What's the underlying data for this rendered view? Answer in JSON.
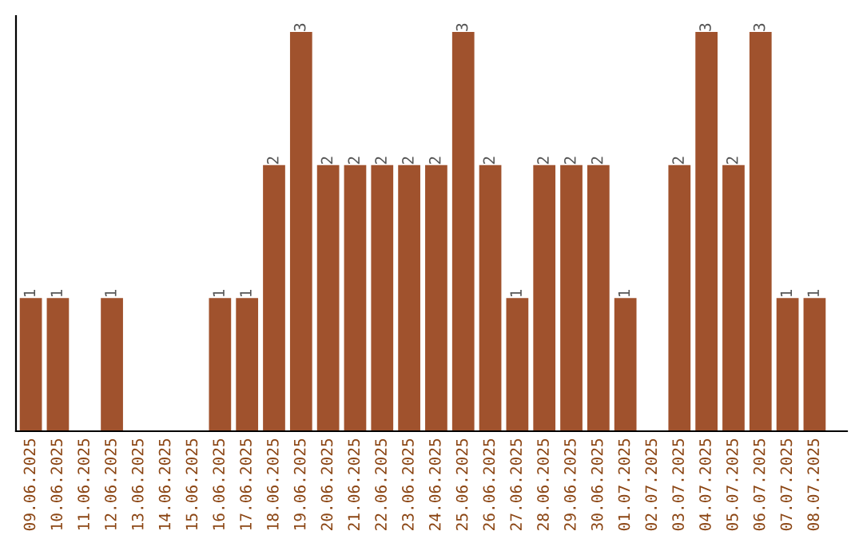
{
  "chart_data": {
    "type": "bar",
    "categories": [
      "09.06.2025",
      "10.06.2025",
      "11.06.2025",
      "12.06.2025",
      "13.06.2025",
      "14.06.2025",
      "15.06.2025",
      "16.06.2025",
      "17.06.2025",
      "18.06.2025",
      "19.06.2025",
      "20.06.2025",
      "21.06.2025",
      "22.06.2025",
      "23.06.2025",
      "24.06.2025",
      "25.06.2025",
      "26.06.2025",
      "27.06.2025",
      "28.06.2025",
      "29.06.2025",
      "30.06.2025",
      "01.07.2025",
      "02.07.2025",
      "03.07.2025",
      "04.07.2025",
      "05.07.2025",
      "06.07.2025",
      "07.07.2025",
      "08.07.2025"
    ],
    "values": [
      1,
      1,
      0,
      1,
      0,
      0,
      0,
      1,
      1,
      2,
      3,
      2,
      2,
      2,
      2,
      2,
      3,
      2,
      1,
      2,
      2,
      2,
      1,
      0,
      2,
      3,
      2,
      3,
      1,
      1
    ],
    "value_labels": [
      "1",
      "1",
      null,
      "1",
      null,
      null,
      null,
      "1",
      "1",
      "2",
      "3",
      "2",
      "2",
      "2",
      "2",
      "2",
      "3",
      "2",
      "1",
      "2",
      "2",
      "2",
      "1",
      null,
      "2",
      "3",
      "2",
      "3",
      "1",
      "1"
    ],
    "color": "#a0522d",
    "grid": false,
    "legend": false,
    "tick_labels": "x"
  }
}
